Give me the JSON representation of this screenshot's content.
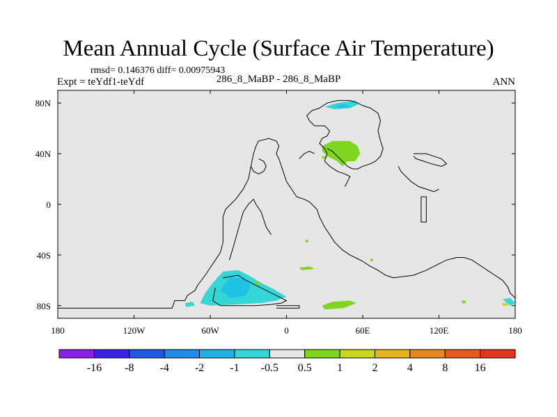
{
  "title": "Mean Annual Cycle (Surface Air Temperature)",
  "stats": "rmsd= 0.146376 diff= 0.00975943",
  "experiment": "Expt = teYdf1-teYdf",
  "subtitle": "286_8_MaBP - 286_8_MaBP",
  "season": "ANN",
  "map": {
    "projection": "cylindrical-equidistant",
    "lon_range": [
      -180,
      180
    ],
    "lat_range": [
      -90,
      90
    ],
    "background": "#e6e6e6",
    "coastline_color": "#000000",
    "x_ticks": [
      {
        "lon": -180,
        "label": "180"
      },
      {
        "lon": -120,
        "label": "120W"
      },
      {
        "lon": -60,
        "label": "60W"
      },
      {
        "lon": 0,
        "label": "0"
      },
      {
        "lon": 60,
        "label": "60E"
      },
      {
        "lon": 120,
        "label": "120E"
      },
      {
        "lon": 180,
        "label": "180"
      }
    ],
    "y_ticks": [
      {
        "lat": 80,
        "label": "80N"
      },
      {
        "lat": 40,
        "label": "40N"
      },
      {
        "lat": 0,
        "label": "0"
      },
      {
        "lat": -40,
        "label": "40S"
      },
      {
        "lat": -80,
        "label": "80S"
      }
    ],
    "features": [
      {
        "color": "#36d6d6",
        "value_class": "-1 to -0.5",
        "polygon": [
          [
            -50,
            -53
          ],
          [
            -38,
            -52
          ],
          [
            -30,
            -56
          ],
          [
            -20,
            -62
          ],
          [
            -10,
            -67
          ],
          [
            0,
            -73
          ],
          [
            -8,
            -76
          ],
          [
            -20,
            -78
          ],
          [
            -40,
            -79
          ],
          [
            -60,
            -80
          ],
          [
            -68,
            -78
          ],
          [
            -64,
            -70
          ],
          [
            -58,
            -62
          ]
        ]
      },
      {
        "color": "#1fc1e6",
        "value_class": "-2 to -1",
        "polygon": [
          [
            -45,
            -58
          ],
          [
            -35,
            -58
          ],
          [
            -28,
            -64
          ],
          [
            -32,
            -72
          ],
          [
            -44,
            -74
          ],
          [
            -52,
            -68
          ]
        ]
      },
      {
        "color": "#36d6d6",
        "value_class": "-1 to -0.5",
        "polygon": [
          [
            -80,
            -78
          ],
          [
            -74,
            -77
          ],
          [
            -72,
            -80
          ],
          [
            -79,
            -81
          ]
        ]
      },
      {
        "color": "#36d6d6",
        "value_class": "-1 to -0.5",
        "polygon": [
          [
            30,
            77
          ],
          [
            40,
            80
          ],
          [
            54,
            82
          ],
          [
            57,
            79
          ],
          [
            50,
            76
          ],
          [
            38,
            75
          ]
        ]
      },
      {
        "color": "#1fc1e6",
        "value_class": "-2 to -1",
        "polygon": [
          [
            38,
            78
          ],
          [
            46,
            79
          ],
          [
            50,
            77
          ],
          [
            42,
            76
          ]
        ]
      },
      {
        "color": "#36d6d6",
        "value_class": "-1 to -0.5",
        "polygon": [
          [
            170,
            -75
          ],
          [
            176,
            -74
          ],
          [
            180,
            -78
          ],
          [
            176,
            -80
          ]
        ]
      },
      {
        "color": "#7fd61f",
        "value_class": "0.5 to 1",
        "polygon": [
          [
            28,
            46
          ],
          [
            36,
            50
          ],
          [
            50,
            50
          ],
          [
            56,
            46
          ],
          [
            58,
            40
          ],
          [
            54,
            34
          ],
          [
            48,
            34
          ],
          [
            44,
            30
          ],
          [
            40,
            34
          ],
          [
            32,
            38
          ],
          [
            28,
            42
          ]
        ]
      },
      {
        "color": "#7fd61f",
        "value_class": "0.5 to 1",
        "polygon": [
          [
            28,
            38
          ],
          [
            31,
            38
          ],
          [
            31,
            36
          ],
          [
            28,
            36
          ]
        ]
      },
      {
        "color": "#7fd61f",
        "value_class": "0.5 to 1",
        "polygon": [
          [
            28,
            -80
          ],
          [
            36,
            -77
          ],
          [
            50,
            -76
          ],
          [
            55,
            -78
          ],
          [
            45,
            -82
          ],
          [
            30,
            -83
          ]
        ]
      },
      {
        "color": "#7fd61f",
        "value_class": "0.5 to 1",
        "polygon": [
          [
            10,
            -50
          ],
          [
            18,
            -49
          ],
          [
            22,
            -51
          ],
          [
            12,
            -52
          ]
        ]
      },
      {
        "color": "#7fd61f",
        "value_class": "0.5 to 1",
        "polygon": [
          [
            -25,
            -61
          ],
          [
            -21,
            -61
          ],
          [
            -21,
            -63
          ],
          [
            -25,
            -63
          ]
        ]
      },
      {
        "color": "#7fd61f",
        "value_class": "0.5 to 1",
        "polygon": [
          [
            66,
            -43
          ],
          [
            68,
            -43
          ],
          [
            68,
            -45
          ],
          [
            66,
            -45
          ]
        ]
      },
      {
        "color": "#7fd61f",
        "value_class": "0.5 to 1",
        "polygon": [
          [
            15,
            -28
          ],
          [
            17,
            -28
          ],
          [
            17,
            -30
          ],
          [
            15,
            -30
          ]
        ]
      },
      {
        "color": "#7fd61f",
        "value_class": "0.5 to 1",
        "polygon": [
          [
            138,
            -76
          ],
          [
            141,
            -76
          ],
          [
            141,
            -78
          ],
          [
            138,
            -78
          ]
        ]
      },
      {
        "color": "#c8d61f",
        "value_class": "1 to 2",
        "polygon": [
          [
            170,
            -78
          ],
          [
            174,
            -78
          ],
          [
            174,
            -80
          ],
          [
            170,
            -80
          ]
        ]
      }
    ],
    "coastlines": [
      [
        [
          -180,
          -82
        ],
        [
          -90,
          -82
        ],
        [
          -88,
          -76
        ],
        [
          -80,
          -76
        ],
        [
          -78,
          -72
        ],
        [
          -72,
          -68
        ],
        [
          -70,
          -64
        ],
        [
          -64,
          -56
        ],
        [
          -60,
          -50
        ],
        [
          -56,
          -44
        ],
        [
          -52,
          -38
        ],
        [
          -50,
          -30
        ],
        [
          -50,
          -20
        ],
        [
          -50,
          -10
        ],
        [
          -48,
          -4
        ],
        [
          -44,
          0
        ],
        [
          -40,
          4
        ],
        [
          -34,
          12
        ],
        [
          -30,
          20
        ],
        [
          -28,
          30
        ],
        [
          -26,
          40
        ],
        [
          -24,
          46
        ],
        [
          -22,
          50
        ],
        [
          -14,
          52
        ],
        [
          -8,
          50
        ],
        [
          -6,
          46
        ],
        [
          -8,
          40
        ],
        [
          -6,
          36
        ],
        [
          -4,
          30
        ],
        [
          -2,
          24
        ],
        [
          0,
          18
        ],
        [
          4,
          12
        ],
        [
          8,
          6
        ],
        [
          14,
          4
        ],
        [
          18,
          2
        ],
        [
          24,
          -4
        ],
        [
          26,
          -10
        ],
        [
          30,
          -18
        ],
        [
          34,
          -24
        ],
        [
          38,
          -30
        ],
        [
          44,
          -36
        ],
        [
          50,
          -40
        ],
        [
          54,
          -42
        ],
        [
          60,
          -45
        ],
        [
          66,
          -49
        ],
        [
          72,
          -52
        ],
        [
          78,
          -56
        ],
        [
          84,
          -58
        ],
        [
          92,
          -57
        ],
        [
          100,
          -56
        ],
        [
          110,
          -52
        ],
        [
          120,
          -47
        ],
        [
          126,
          -44
        ],
        [
          134,
          -42
        ],
        [
          140,
          -42
        ],
        [
          146,
          -44
        ],
        [
          152,
          -48
        ],
        [
          158,
          -52
        ],
        [
          164,
          -56
        ],
        [
          170,
          -60
        ],
        [
          174,
          -65
        ],
        [
          176,
          -70
        ],
        [
          180,
          -74
        ]
      ],
      [
        [
          -45,
          -44
        ],
        [
          -42,
          -34
        ],
        [
          -38,
          -20
        ],
        [
          -34,
          -6
        ],
        [
          -30,
          0
        ],
        [
          -26,
          4
        ],
        [
          -24,
          0
        ],
        [
          -20,
          -6
        ],
        [
          -18,
          -12
        ],
        [
          -16,
          -18
        ],
        [
          -12,
          -24
        ]
      ],
      [
        [
          -28,
          30
        ],
        [
          -26,
          26
        ],
        [
          -22,
          24
        ],
        [
          -18,
          26
        ],
        [
          -16,
          30
        ],
        [
          -18,
          34
        ],
        [
          -22,
          36
        ]
      ],
      [
        [
          -50,
          -58
        ],
        [
          -38,
          -56
        ],
        [
          -32,
          -60
        ],
        [
          -24,
          -64
        ],
        [
          -16,
          -68
        ],
        [
          -8,
          -72
        ],
        [
          0,
          -76
        ],
        [
          -4,
          -78
        ],
        [
          -12,
          -79
        ],
        [
          -24,
          -80
        ],
        [
          -38,
          -80
        ],
        [
          -52,
          -80
        ],
        [
          -58,
          -76
        ],
        [
          -56,
          -66
        ]
      ],
      [
        [
          -8,
          -82
        ],
        [
          10,
          -82
        ],
        [
          10,
          -80
        ],
        [
          -8,
          -80
        ]
      ],
      [
        [
          22,
          62
        ],
        [
          30,
          62
        ],
        [
          34,
          58
        ],
        [
          32,
          54
        ],
        [
          28,
          52
        ],
        [
          26,
          48
        ],
        [
          30,
          44
        ],
        [
          32,
          40
        ],
        [
          30,
          34
        ],
        [
          34,
          30
        ],
        [
          40,
          26
        ],
        [
          46,
          24
        ],
        [
          50,
          22
        ],
        [
          48,
          18
        ],
        [
          46,
          14
        ]
      ],
      [
        [
          22,
          62
        ],
        [
          18,
          66
        ],
        [
          16,
          70
        ],
        [
          20,
          74
        ],
        [
          26,
          76
        ],
        [
          32,
          80
        ],
        [
          40,
          82
        ],
        [
          50,
          82
        ],
        [
          56,
          80
        ],
        [
          60,
          78
        ],
        [
          66,
          76
        ],
        [
          72,
          72
        ],
        [
          74,
          66
        ],
        [
          72,
          58
        ],
        [
          74,
          50
        ],
        [
          76,
          44
        ],
        [
          74,
          38
        ],
        [
          70,
          34
        ],
        [
          66,
          32
        ],
        [
          60,
          30
        ],
        [
          56,
          28
        ],
        [
          52,
          28
        ],
        [
          48,
          30
        ],
        [
          44,
          34
        ],
        [
          40,
          38
        ],
        [
          36,
          42
        ],
        [
          32,
          44
        ]
      ],
      [
        [
          100,
          40
        ],
        [
          110,
          40
        ],
        [
          116,
          38
        ],
        [
          122,
          36
        ],
        [
          126,
          32
        ],
        [
          122,
          30
        ],
        [
          114,
          32
        ],
        [
          108,
          34
        ],
        [
          102,
          36
        ],
        [
          100,
          38
        ]
      ],
      [
        [
          88,
          30
        ],
        [
          90,
          26
        ],
        [
          94,
          22
        ],
        [
          98,
          18
        ],
        [
          104,
          14
        ],
        [
          110,
          12
        ],
        [
          116,
          10
        ],
        [
          120,
          12
        ]
      ],
      [
        [
          106,
          6
        ],
        [
          110,
          6
        ],
        [
          110,
          -14
        ],
        [
          106,
          -14
        ],
        [
          106,
          6
        ]
      ],
      [
        [
          10,
          36
        ],
        [
          14,
          40
        ],
        [
          18,
          42
        ],
        [
          22,
          40
        ]
      ]
    ]
  },
  "colorbar": {
    "colors": [
      "#8c1fe6",
      "#3a1fe6",
      "#1f5ae6",
      "#1f8be6",
      "#1fb0e6",
      "#36d6d6",
      "#e6e6e6",
      "#7fd61f",
      "#c8d61f",
      "#e6b41f",
      "#e6881f",
      "#e65a1f",
      "#e6351f"
    ],
    "labels": [
      "-16",
      "-8",
      "-4",
      "-2",
      "-1",
      "-0.5",
      "0.5",
      "1",
      "2",
      "4",
      "8",
      "16"
    ]
  }
}
